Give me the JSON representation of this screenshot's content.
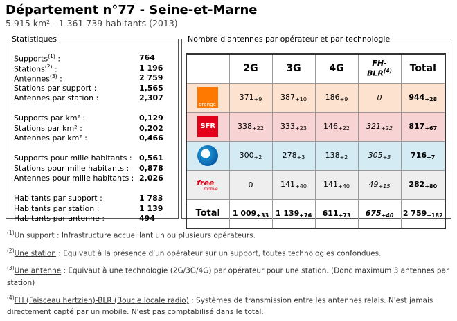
{
  "header": {
    "title": "Département n°77 - Seine-et-Marne",
    "subtitle": "5 915 km² - 1 361 739 habitants (2013)"
  },
  "stats": {
    "legend": "Statistiques",
    "groups": [
      [
        {
          "label": "Supports",
          "note": "(1)",
          "suffix": " :",
          "value": "764"
        },
        {
          "label": "Stations",
          "note": "(2)",
          "suffix": " :",
          "value": "1 196"
        },
        {
          "label": "Antennes",
          "note": "(3)",
          "suffix": " :",
          "value": "2 759"
        },
        {
          "label": "Stations par support :",
          "value": "1,565"
        },
        {
          "label": "Antennes par station :",
          "value": "2,307"
        }
      ],
      [
        {
          "label": "Supports par km² :",
          "value": "0,129"
        },
        {
          "label": "Stations par km² :",
          "value": "0,202"
        },
        {
          "label": "Antennes par km² :",
          "value": "0,466"
        }
      ],
      [
        {
          "label": "Supports pour mille habitants :",
          "value": "0,561"
        },
        {
          "label": "Stations pour mille habitants :",
          "value": "0,878"
        },
        {
          "label": "Antennes pour mille habitants :",
          "value": "2,026"
        }
      ],
      [
        {
          "label": "Habitants par support :",
          "value": "1 783"
        },
        {
          "label": "Habitants par station :",
          "value": "1 139"
        },
        {
          "label": "Habitants par antenne :",
          "value": "494"
        }
      ]
    ]
  },
  "table": {
    "legend": "Nombre d'antennes par opérateur et par technologie",
    "columns": [
      {
        "line1": "2G"
      },
      {
        "line1": "3G"
      },
      {
        "line1": "4G"
      },
      {
        "line1": "FH-",
        "line2": "BLR",
        "note": "(4)"
      },
      {
        "line1": "Total"
      }
    ],
    "rows": [
      {
        "operator": "orange",
        "logo_text": "orange",
        "cells": [
          {
            "v": "371",
            "d": "+9"
          },
          {
            "v": "387",
            "d": "+10"
          },
          {
            "v": "186",
            "d": "+9"
          },
          {
            "v": "0"
          },
          {
            "v": "944",
            "d": "+28"
          }
        ]
      },
      {
        "operator": "sfr",
        "logo_text": "SFR",
        "cells": [
          {
            "v": "338",
            "d": "+22"
          },
          {
            "v": "333",
            "d": "+23"
          },
          {
            "v": "146",
            "d": "+22"
          },
          {
            "v": "321",
            "d": "+22"
          },
          {
            "v": "817",
            "d": "+67"
          }
        ]
      },
      {
        "operator": "bouygues",
        "cells": [
          {
            "v": "300",
            "d": "+2"
          },
          {
            "v": "278",
            "d": "+3"
          },
          {
            "v": "138",
            "d": "+2"
          },
          {
            "v": "305",
            "d": "+3"
          },
          {
            "v": "716",
            "d": "+7"
          }
        ]
      },
      {
        "operator": "free",
        "logo_text": "free",
        "logo_sub": "mobile",
        "cells": [
          {
            "v": "0"
          },
          {
            "v": "141",
            "d": "+40"
          },
          {
            "v": "141",
            "d": "+40"
          },
          {
            "v": "49",
            "d": "+15"
          },
          {
            "v": "282",
            "d": "+80"
          }
        ]
      }
    ],
    "total": {
      "label": "Total",
      "cells": [
        {
          "v": "1 009",
          "d": "+33"
        },
        {
          "v": "1 139",
          "d": "+76"
        },
        {
          "v": "611",
          "d": "+73"
        },
        {
          "v": "675",
          "d": "+40"
        },
        {
          "v": "2 759",
          "d": "+182"
        }
      ]
    }
  },
  "footnotes": [
    {
      "num": "(1)",
      "term": "Un support",
      "text": " : Infrastructure accueillant un ou plusieurs opérateurs."
    },
    {
      "num": "(2)",
      "term": "Une station",
      "text": " : Equivaut à la présence d'un opérateur sur un support, toutes technologies confondues."
    },
    {
      "num": "(3)",
      "term": "Une antenne",
      "text": " : Equivaut à une technologie (2G/3G/4G) par opérateur pour une station. (Donc maximum 3 antennes par station)"
    },
    {
      "num": "(4)",
      "term": "FH (Faisceau hertzien)-BLR (Boucle locale radio)",
      "text": " : Systèmes de transmission entre les antennes relais. N'est jamais directement capté par un mobile. N'est pas comptabilisé dans le total."
    }
  ]
}
